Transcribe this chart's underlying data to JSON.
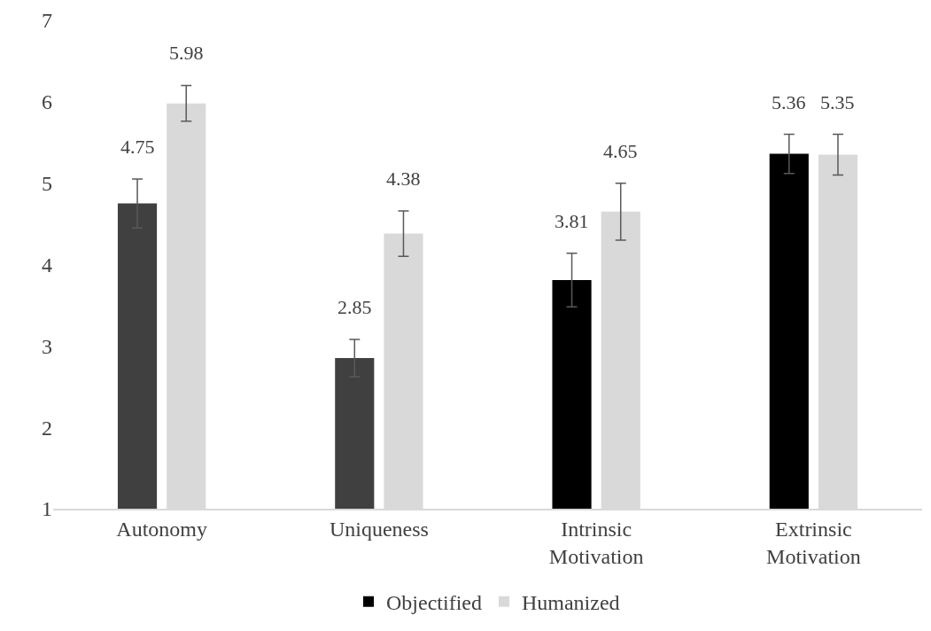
{
  "chart_data": {
    "type": "bar",
    "categories": [
      "Autonomy",
      "Uniqueness",
      "Intrinsic\nMotivation",
      "Extrinsic\nMotivation"
    ],
    "series": [
      {
        "name": "Objectified",
        "color": "#000000",
        "colors": [
          "#404040",
          "#404040",
          "#000000",
          "#000000"
        ],
        "values": [
          4.75,
          2.85,
          3.81,
          5.36
        ],
        "errors": [
          0.3,
          0.23,
          0.33,
          0.24
        ]
      },
      {
        "name": "Humanized",
        "color": "#d9d9d9",
        "values": [
          5.98,
          4.38,
          4.65,
          5.35
        ],
        "errors": [
          0.22,
          0.28,
          0.35,
          0.25
        ]
      }
    ],
    "ylim": [
      1,
      7
    ],
    "yticks": [
      1,
      2,
      3,
      4,
      5,
      6,
      7
    ],
    "data_labels": true,
    "legend": "bottom"
  }
}
